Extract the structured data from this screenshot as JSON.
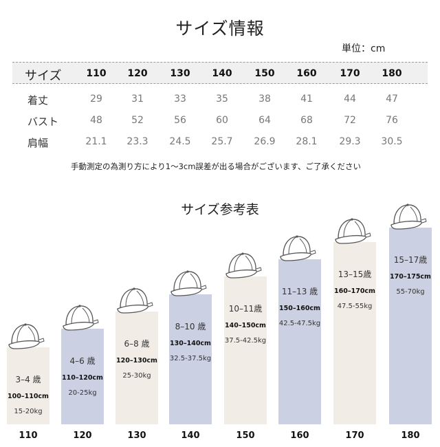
{
  "title": "サイズ情報",
  "unit": "単位：cm",
  "table": {
    "header_label": "サイズ",
    "sizes": [
      "110",
      "120",
      "130",
      "140",
      "150",
      "160",
      "170",
      "180"
    ],
    "rows": [
      {
        "label": "着丈",
        "values": [
          "29",
          "31",
          "33",
          "35",
          "38",
          "41",
          "44",
          "47"
        ]
      },
      {
        "label": "バスト",
        "values": [
          "48",
          "52",
          "56",
          "60",
          "64",
          "68",
          "72",
          "76"
        ]
      },
      {
        "label": "肩幅",
        "values": [
          "21.1",
          "23.3",
          "24.5",
          "25.7",
          "26.9",
          "28.1",
          "29.3",
          "30.5"
        ]
      }
    ]
  },
  "note": "手動測定の為測り方により1～3cm誤差が出る場合がございます、ご了承ください",
  "reference": {
    "title": "サイズ参考表",
    "items": [
      {
        "size": "110",
        "age": "3–4 歳",
        "height": "100–110cm",
        "weight": "15-20kg",
        "color": "beige"
      },
      {
        "size": "120",
        "age": "4–6 歳",
        "height": "110–120cm",
        "weight": "20-25kg",
        "color": "blue"
      },
      {
        "size": "130",
        "age": "6–8 歳",
        "height": "120–130cm",
        "weight": "25-30kg",
        "color": "beige"
      },
      {
        "size": "140",
        "age": "8–10 歳",
        "height": "130–140cm",
        "weight": "32.5-37.5kg",
        "color": "blue"
      },
      {
        "size": "150",
        "age": "10–11歳",
        "height": "140–150cm",
        "weight": "37.5-42.5kg",
        "color": "beige"
      },
      {
        "size": "160",
        "age": "11–13 歳",
        "height": "150–160cm",
        "weight": "42.5-47.5kg",
        "color": "blue"
      },
      {
        "size": "170",
        "age": "13–15歳",
        "height": "160–170cm",
        "weight": "47.5-55kg",
        "color": "beige"
      },
      {
        "size": "180",
        "age": "15–17歳",
        "height": "170–175cm",
        "weight": "55-70kg",
        "color": "blue"
      }
    ]
  },
  "colors": {
    "beige": "#f1ede6",
    "blue": "#cbd0e2",
    "header_bg": "#f0f0f0"
  }
}
